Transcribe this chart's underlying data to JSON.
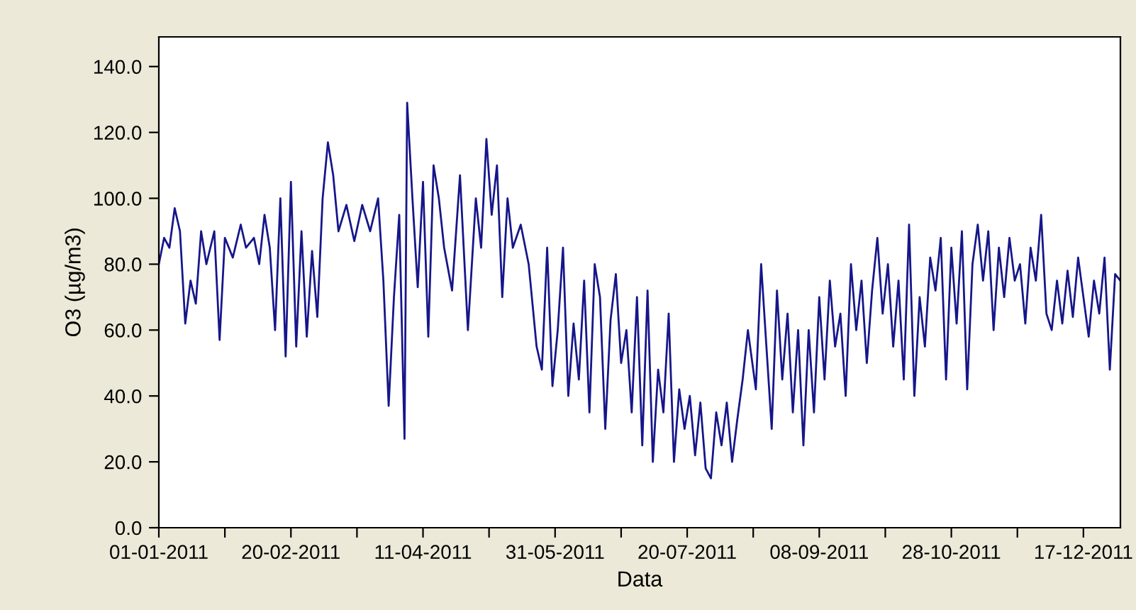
{
  "chart_data": {
    "type": "line",
    "xlabel": "Data",
    "ylabel": "O3 (µg/m3)",
    "xlim": [
      "2011-01-01",
      "2011-12-31"
    ],
    "xticks": [
      {
        "value": "2011-01-01",
        "label": "01-01-2011"
      },
      {
        "value": "2011-01-26",
        "label": null
      },
      {
        "value": "2011-02-20",
        "label": "20-02-2011"
      },
      {
        "value": "2011-03-17",
        "label": null
      },
      {
        "value": "2011-04-11",
        "label": "11-04-2011"
      },
      {
        "value": "2011-05-06",
        "label": null
      },
      {
        "value": "2011-05-31",
        "label": "31-05-2011"
      },
      {
        "value": "2011-06-25",
        "label": null
      },
      {
        "value": "2011-07-20",
        "label": "20-07-2011"
      },
      {
        "value": "2011-08-14",
        "label": null
      },
      {
        "value": "2011-09-08",
        "label": "08-09-2011"
      },
      {
        "value": "2011-10-03",
        "label": null
      },
      {
        "value": "2011-10-28",
        "label": "28-10-2011"
      },
      {
        "value": "2011-11-22",
        "label": null
      },
      {
        "value": "2011-12-17",
        "label": "17-12-2011"
      }
    ],
    "ylim": [
      0,
      149
    ],
    "yticks": [
      {
        "value": 0,
        "label": "0.0"
      },
      {
        "value": 20,
        "label": "20.0"
      },
      {
        "value": 40,
        "label": "40.0"
      },
      {
        "value": 60,
        "label": "60.0"
      },
      {
        "value": 80,
        "label": "80.0"
      },
      {
        "value": 100,
        "label": "100.0"
      },
      {
        "value": 120,
        "label": "120.0"
      },
      {
        "value": 140,
        "label": "140.0"
      }
    ],
    "grid": false,
    "legend": false,
    "marker": "none",
    "line_style": "solid",
    "series": [
      {
        "color": "#16168a",
        "x": [
          "2011-01-01",
          "2011-01-03",
          "2011-01-05",
          "2011-01-07",
          "2011-01-09",
          "2011-01-11",
          "2011-01-13",
          "2011-01-15",
          "2011-01-17",
          "2011-01-19",
          "2011-01-22",
          "2011-01-24",
          "2011-01-26",
          "2011-01-29",
          "2011-02-01",
          "2011-02-03",
          "2011-02-06",
          "2011-02-08",
          "2011-02-10",
          "2011-02-12",
          "2011-02-14",
          "2011-02-16",
          "2011-02-18",
          "2011-02-20",
          "2011-02-22",
          "2011-02-24",
          "2011-02-26",
          "2011-02-28",
          "2011-03-02",
          "2011-03-04",
          "2011-03-06",
          "2011-03-08",
          "2011-03-10",
          "2011-03-13",
          "2011-03-16",
          "2011-03-19",
          "2011-03-22",
          "2011-03-25",
          "2011-03-27",
          "2011-03-29",
          "2011-03-31",
          "2011-04-02",
          "2011-04-04",
          "2011-04-05",
          "2011-04-07",
          "2011-04-09",
          "2011-04-11",
          "2011-04-13",
          "2011-04-15",
          "2011-04-17",
          "2011-04-19",
          "2011-04-22",
          "2011-04-25",
          "2011-04-28",
          "2011-05-01",
          "2011-05-03",
          "2011-05-05",
          "2011-05-07",
          "2011-05-09",
          "2011-05-11",
          "2011-05-13",
          "2011-05-15",
          "2011-05-18",
          "2011-05-21",
          "2011-05-24",
          "2011-05-26",
          "2011-05-28",
          "2011-05-30",
          "2011-06-01",
          "2011-06-03",
          "2011-06-05",
          "2011-06-07",
          "2011-06-09",
          "2011-06-11",
          "2011-06-13",
          "2011-06-15",
          "2011-06-17",
          "2011-06-19",
          "2011-06-21",
          "2011-06-23",
          "2011-06-25",
          "2011-06-27",
          "2011-06-29",
          "2011-07-01",
          "2011-07-03",
          "2011-07-05",
          "2011-07-07",
          "2011-07-09",
          "2011-07-11",
          "2011-07-13",
          "2011-07-15",
          "2011-07-17",
          "2011-07-19",
          "2011-07-21",
          "2011-07-23",
          "2011-07-25",
          "2011-07-27",
          "2011-07-29",
          "2011-07-31",
          "2011-08-02",
          "2011-08-04",
          "2011-08-06",
          "2011-08-08",
          "2011-08-10",
          "2011-08-12",
          "2011-08-15",
          "2011-08-17",
          "2011-08-19",
          "2011-08-21",
          "2011-08-23",
          "2011-08-25",
          "2011-08-27",
          "2011-08-29",
          "2011-08-31",
          "2011-09-02",
          "2011-09-04",
          "2011-09-06",
          "2011-09-08",
          "2011-09-10",
          "2011-09-12",
          "2011-09-14",
          "2011-09-16",
          "2011-09-18",
          "2011-09-20",
          "2011-09-22",
          "2011-09-24",
          "2011-09-26",
          "2011-09-28",
          "2011-09-30",
          "2011-10-02",
          "2011-10-04",
          "2011-10-06",
          "2011-10-08",
          "2011-10-10",
          "2011-10-12",
          "2011-10-14",
          "2011-10-16",
          "2011-10-18",
          "2011-10-20",
          "2011-10-22",
          "2011-10-24",
          "2011-10-26",
          "2011-10-28",
          "2011-10-30",
          "2011-11-01",
          "2011-11-03",
          "2011-11-05",
          "2011-11-07",
          "2011-11-09",
          "2011-11-11",
          "2011-11-13",
          "2011-11-15",
          "2011-11-17",
          "2011-11-19",
          "2011-11-21",
          "2011-11-23",
          "2011-11-25",
          "2011-11-27",
          "2011-11-29",
          "2011-12-01",
          "2011-12-03",
          "2011-12-05",
          "2011-12-07",
          "2011-12-09",
          "2011-12-11",
          "2011-12-13",
          "2011-12-15",
          "2011-12-17",
          "2011-12-19",
          "2011-12-21",
          "2011-12-23",
          "2011-12-25",
          "2011-12-27",
          "2011-12-29",
          "2011-12-31"
        ],
        "values": [
          80,
          88,
          85,
          97,
          90,
          62,
          75,
          68,
          90,
          80,
          90,
          57,
          88,
          82,
          92,
          85,
          88,
          80,
          95,
          85,
          60,
          100,
          52,
          105,
          55,
          90,
          58,
          84,
          64,
          100,
          117,
          107,
          90,
          98,
          87,
          98,
          90,
          100,
          75,
          37,
          70,
          95,
          27,
          129,
          100,
          73,
          105,
          58,
          110,
          100,
          85,
          72,
          107,
          60,
          100,
          85,
          118,
          95,
          110,
          70,
          100,
          85,
          92,
          80,
          55,
          48,
          85,
          43,
          60,
          85,
          40,
          62,
          45,
          75,
          35,
          80,
          70,
          30,
          63,
          77,
          50,
          60,
          35,
          70,
          25,
          72,
          20,
          48,
          35,
          65,
          20,
          42,
          30,
          40,
          22,
          38,
          18,
          15,
          35,
          25,
          38,
          20,
          33,
          45,
          60,
          42,
          80,
          55,
          30,
          72,
          45,
          65,
          35,
          60,
          25,
          60,
          35,
          70,
          45,
          75,
          55,
          65,
          40,
          80,
          60,
          75,
          50,
          72,
          88,
          65,
          80,
          55,
          75,
          45,
          92,
          40,
          70,
          55,
          82,
          72,
          88,
          45,
          85,
          62,
          90,
          42,
          80,
          92,
          75,
          90,
          60,
          85,
          70,
          88,
          75,
          80,
          62,
          85,
          75,
          95,
          65,
          60,
          75,
          62,
          78,
          64,
          82,
          70,
          58,
          75,
          65,
          82,
          48,
          77,
          75
        ]
      }
    ]
  }
}
